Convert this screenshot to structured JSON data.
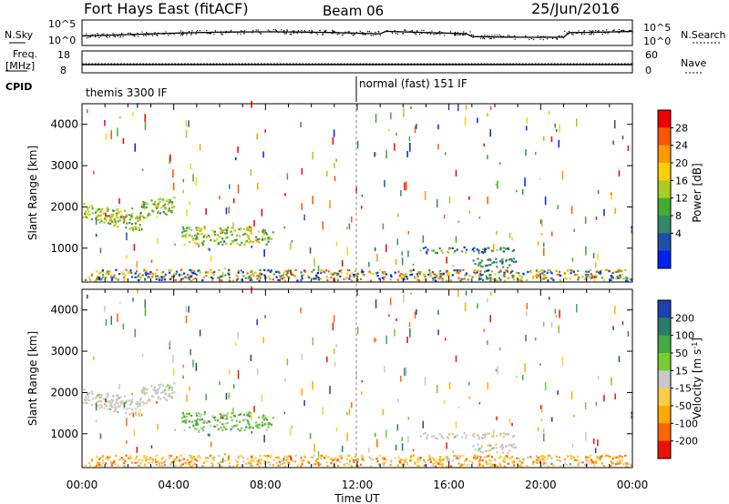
{
  "header": {
    "title": "Fort Hays East (fitACF)",
    "beam": "Beam 06",
    "date": "25/Jun/2016"
  },
  "summary": {
    "nsky_label": "N.Sky",
    "nsearch_label": "N.Search",
    "freq_label_1": "Freq.",
    "freq_label_2": "[MHz]",
    "nave_label": "Nave",
    "cpid_label": "CPID",
    "noise_ticks_left": [
      "10^5",
      "10^0"
    ],
    "noise_ticks_right": [
      "10^5",
      "10^0"
    ],
    "freq_ticks": [
      "18",
      "8"
    ],
    "nave_ticks": [
      "60",
      "0"
    ],
    "modes": [
      {
        "label": "themis 3300 IF",
        "start_hour": 0
      },
      {
        "label": "normal (fast) 151 IF",
        "start_hour": 12
      }
    ]
  },
  "colorbars": {
    "power": {
      "title": "Power [dB]",
      "ticks": [
        "28",
        "24",
        "20",
        "16",
        "12",
        "8",
        "4"
      ],
      "colors": [
        "#ee0000",
        "#ff5500",
        "#ff9900",
        "#ffd000",
        "#aacc22",
        "#44aa33",
        "#338866",
        "#1f4fa8",
        "#0022ee"
      ]
    },
    "velocity": {
      "title": "Velocity [m s",
      "title_sup": "-1",
      "title_end": "]",
      "ticks": [
        "200",
        "100",
        "50",
        "15",
        "-15",
        "-50",
        "-100",
        "-200"
      ],
      "colors": [
        "#1f3fae",
        "#2a7c6a",
        "#44aa44",
        "#77cc33",
        "#c8c8c8",
        "#ffcc44",
        "#ffaa00",
        "#ff6600",
        "#ee1100"
      ]
    }
  },
  "chart_data": [
    {
      "type": "heatmap",
      "name": "power",
      "ylabel": "Slant Range [km]",
      "xlabel": "Time UT",
      "xlim": [
        0,
        24
      ],
      "ylim": [
        180,
        4500
      ],
      "yticks": [
        1000,
        2000,
        3000,
        4000
      ],
      "xticks": [
        "00:00",
        "04:00",
        "08:00",
        "12:00",
        "16:00",
        "20:00",
        "00:00"
      ],
      "regions": [
        {
          "t0": 0.0,
          "t1": 4.0,
          "r0": 1550,
          "r1": 2100,
          "level": "mid"
        },
        {
          "t0": 4.3,
          "t1": 8.3,
          "r0": 1050,
          "r1": 1500,
          "level": "mid"
        },
        {
          "t0": 0.0,
          "t1": 24.0,
          "r0": 180,
          "r1": 450,
          "level": "mixed"
        },
        {
          "t0": 14.7,
          "t1": 18.8,
          "r0": 850,
          "r1": 1000,
          "level": "low-mid"
        },
        {
          "t0": 17.0,
          "t1": 19.0,
          "r0": 500,
          "r1": 720,
          "level": "low"
        }
      ]
    },
    {
      "type": "heatmap",
      "name": "velocity",
      "ylabel": "Slant Range [km]",
      "xlabel": "Time UT",
      "xlim": [
        0,
        24
      ],
      "ylim": [
        180,
        4500
      ],
      "yticks": [
        1000,
        2000,
        3000,
        4000
      ],
      "xticks": [
        "00:00",
        "04:00",
        "08:00",
        "12:00",
        "16:00",
        "20:00",
        "00:00"
      ],
      "regions": [
        {
          "t0": 0.0,
          "t1": 4.0,
          "r0": 1550,
          "r1": 2100,
          "velocity": "ground (~0)"
        },
        {
          "t0": 4.3,
          "t1": 8.3,
          "r0": 1050,
          "r1": 1500,
          "velocity": "15 to 50"
        },
        {
          "t0": 0.0,
          "t1": 24.0,
          "r0": 180,
          "r1": 450,
          "velocity": "-15 to -50"
        },
        {
          "t0": 14.7,
          "t1": 18.8,
          "r0": 850,
          "r1": 1000,
          "velocity": "ground (~0)"
        },
        {
          "t0": 17.0,
          "t1": 19.0,
          "r0": 500,
          "r1": 720,
          "velocity": "ground (~0)"
        }
      ]
    }
  ]
}
